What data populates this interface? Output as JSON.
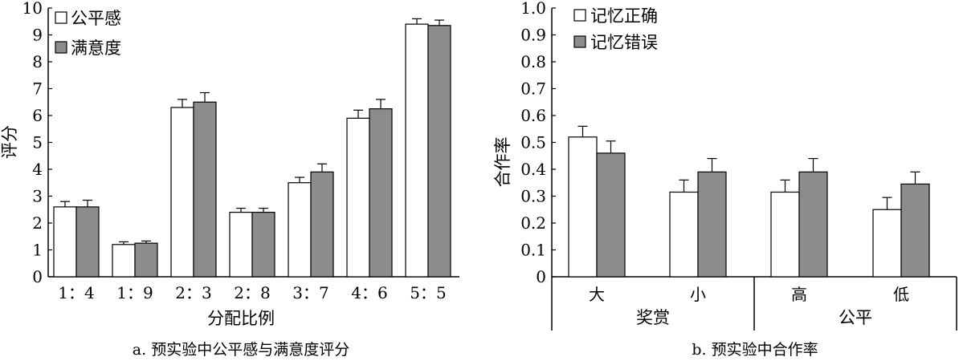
{
  "chart_data": [
    {
      "type": "bar",
      "caption": "a. 预实验中公平感与满意度评分",
      "xlabel": "分配比例",
      "ylabel": "评分",
      "ylim": [
        0,
        10
      ],
      "yticks": [
        "0",
        "1",
        "2",
        "3",
        "4",
        "5",
        "6",
        "7",
        "8",
        "9",
        "10"
      ],
      "categories": [
        "1：4",
        "1：9",
        "2：3",
        "2：8",
        "3：7",
        "4：6",
        "5：5"
      ],
      "legend_position": "top-left",
      "series": [
        {
          "name": "公平感",
          "color": "#ffffff",
          "values": [
            2.6,
            1.2,
            6.3,
            2.4,
            3.5,
            5.9,
            9.4
          ],
          "errors": [
            0.2,
            0.1,
            0.3,
            0.15,
            0.2,
            0.3,
            0.2
          ]
        },
        {
          "name": "满意度",
          "color": "#8c8c8c",
          "values": [
            2.6,
            1.25,
            6.5,
            2.4,
            3.9,
            6.25,
            9.35
          ],
          "errors": [
            0.25,
            0.08,
            0.35,
            0.15,
            0.3,
            0.35,
            0.2
          ]
        }
      ]
    },
    {
      "type": "bar",
      "caption": "b. 预实验中合作率",
      "ylabel": "合作率",
      "ylim": [
        0,
        1.0
      ],
      "yticks": [
        "0",
        "0.1",
        "0.2",
        "0.3",
        "0.4",
        "0.5",
        "0.6",
        "0.7",
        "0.8",
        "0.9",
        "1.0"
      ],
      "categories": [
        "大",
        "小",
        "高",
        "低"
      ],
      "groups": [
        {
          "label": "奖赏",
          "categories": [
            "大",
            "小"
          ]
        },
        {
          "label": "公平",
          "categories": [
            "高",
            "低"
          ]
        }
      ],
      "legend_position": "top-left",
      "series": [
        {
          "name": "记忆正确",
          "color": "#ffffff",
          "values": [
            0.52,
            0.315,
            0.315,
            0.25
          ],
          "errors": [
            0.04,
            0.045,
            0.045,
            0.045
          ]
        },
        {
          "name": "记忆错误",
          "color": "#8c8c8c",
          "values": [
            0.46,
            0.39,
            0.39,
            0.345
          ],
          "errors": [
            0.045,
            0.05,
            0.05,
            0.045
          ]
        }
      ]
    }
  ]
}
